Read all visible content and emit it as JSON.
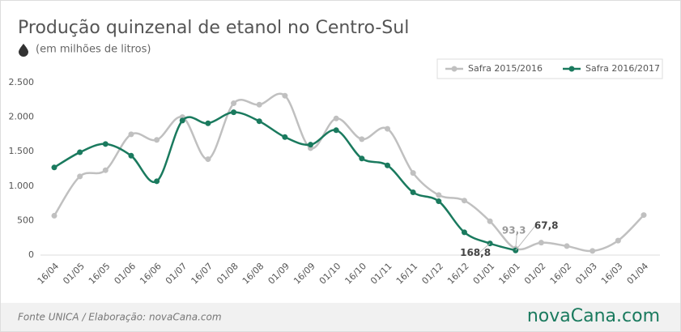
{
  "chart_data": {
    "type": "line",
    "title": "Produção quinzenal de etanol no Centro-Sul",
    "subtitle": "(em milhões de litros)",
    "source": "Fonte UNICA / Elaboração: novaCana.com",
    "logo": "novaCana.com",
    "categories": [
      "16/04",
      "01/05",
      "16/05",
      "01/06",
      "16/06",
      "01/07",
      "16/07",
      "01/08",
      "16/08",
      "01/09",
      "16/09",
      "01/10",
      "16/10",
      "01/11",
      "16/11",
      "01/12",
      "16/12",
      "01/01",
      "16/01",
      "01/02",
      "16/02",
      "01/03",
      "16/03",
      "01/04"
    ],
    "series": [
      {
        "name": "Safra 2015/2016",
        "color": "#c0c0c0",
        "values": [
          570,
          1140,
          1230,
          1750,
          1670,
          2000,
          1390,
          2200,
          2180,
          2310,
          1550,
          1980,
          1680,
          1830,
          1190,
          870,
          790,
          490,
          93.3,
          180,
          130,
          60,
          210,
          580
        ],
        "value_labels": [
          null,
          null,
          null,
          null,
          null,
          null,
          null,
          null,
          null,
          null,
          null,
          null,
          null,
          null,
          null,
          null,
          null,
          null,
          "93,3",
          null,
          null,
          null,
          null,
          null
        ]
      },
      {
        "name": "Safra 2016/2017",
        "color": "#1a7a5e",
        "values": [
          1270,
          1490,
          1610,
          1440,
          1070,
          1950,
          1910,
          2070,
          1940,
          1710,
          1600,
          1810,
          1400,
          1300,
          910,
          780,
          330,
          168.8,
          67.8,
          null,
          null,
          null,
          null,
          null
        ],
        "value_labels": [
          null,
          null,
          null,
          null,
          null,
          null,
          null,
          null,
          null,
          null,
          null,
          null,
          null,
          null,
          null,
          null,
          null,
          "168,8",
          "67,8",
          null,
          null,
          null,
          null,
          null
        ]
      }
    ],
    "ylim": [
      0,
      2500
    ],
    "yticks": [
      0,
      500,
      {
        "value": 1000,
        "label": "1.000"
      },
      {
        "value": 1500,
        "label": "1.500"
      },
      {
        "value": 2000,
        "label": "2.000"
      },
      {
        "value": 2500,
        "label": "2.500"
      }
    ],
    "grid": false,
    "legend": "top-right"
  }
}
